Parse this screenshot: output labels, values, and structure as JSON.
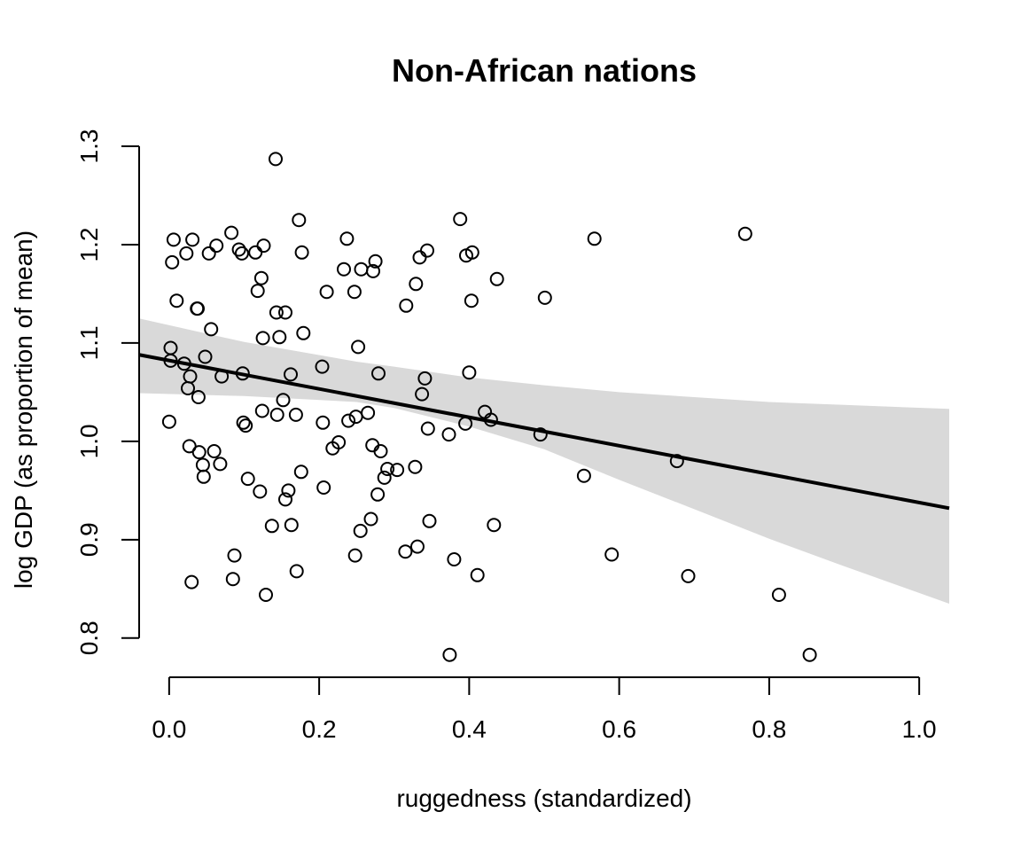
{
  "chart_data": {
    "type": "scatter",
    "title": "Non-African nations",
    "xlabel": "ruggedness (standardized)",
    "ylabel": "log GDP (as proportion of mean)",
    "xlim": [
      -0.04,
      1.04
    ],
    "ylim": [
      0.78,
      1.3
    ],
    "x_ticks": [
      0.0,
      0.2,
      0.4,
      0.6,
      0.8,
      1.0
    ],
    "x_tick_labels": [
      "0.0",
      "0.2",
      "0.4",
      "0.6",
      "0.8",
      "1.0"
    ],
    "y_ticks": [
      0.8,
      0.9,
      1.0,
      1.1,
      1.2,
      1.3
    ],
    "y_tick_labels": [
      "0.8",
      "0.9",
      "1.0",
      "1.1",
      "1.2",
      "1.3"
    ],
    "grid": false,
    "colors": {
      "points": "#000000",
      "line": "#000000",
      "band": "#d9d9d9"
    },
    "regression_line": {
      "x": [
        -0.04,
        1.04
      ],
      "y": [
        1.088,
        0.932
      ]
    },
    "confidence_band": {
      "x": [
        -0.04,
        0.1,
        0.25,
        0.3,
        0.4,
        0.5,
        0.6,
        0.7,
        0.8,
        0.9,
        1.04
      ],
      "upper": [
        1.125,
        1.101,
        1.081,
        1.076,
        1.065,
        1.057,
        1.05,
        1.045,
        1.04,
        1.037,
        1.033
      ],
      "lower": [
        1.049,
        1.046,
        1.04,
        1.034,
        1.015,
        0.992,
        0.961,
        0.931,
        0.901,
        0.873,
        0.835
      ]
    },
    "series": [
      {
        "points": [
          [
            0.0,
            1.02
          ],
          [
            0.002,
            1.095
          ],
          [
            0.002,
            1.082
          ],
          [
            0.004,
            1.182
          ],
          [
            0.006,
            1.205
          ],
          [
            0.01,
            1.143
          ],
          [
            0.02,
            1.079
          ],
          [
            0.023,
            1.191
          ],
          [
            0.025,
            1.054
          ],
          [
            0.027,
            0.995
          ],
          [
            0.028,
            1.066
          ],
          [
            0.03,
            0.857
          ],
          [
            0.031,
            1.205
          ],
          [
            0.037,
            1.135
          ],
          [
            0.038,
            1.135
          ],
          [
            0.039,
            1.045
          ],
          [
            0.04,
            0.989
          ],
          [
            0.045,
            0.976
          ],
          [
            0.046,
            0.964
          ],
          [
            0.048,
            1.086
          ],
          [
            0.053,
            1.191
          ],
          [
            0.056,
            1.114
          ],
          [
            0.06,
            0.99
          ],
          [
            0.063,
            1.199
          ],
          [
            0.068,
            0.977
          ],
          [
            0.07,
            1.066
          ],
          [
            0.083,
            1.212
          ],
          [
            0.085,
            0.86
          ],
          [
            0.087,
            0.884
          ],
          [
            0.093,
            1.195
          ],
          [
            0.097,
            1.191
          ],
          [
            0.098,
            1.069
          ],
          [
            0.099,
            1.019
          ],
          [
            0.102,
            1.016
          ],
          [
            0.105,
            0.962
          ],
          [
            0.115,
            1.192
          ],
          [
            0.118,
            1.153
          ],
          [
            0.121,
            0.949
          ],
          [
            0.123,
            1.166
          ],
          [
            0.124,
            1.031
          ],
          [
            0.125,
            1.105
          ],
          [
            0.126,
            1.199
          ],
          [
            0.129,
            0.844
          ],
          [
            0.137,
            0.914
          ],
          [
            0.142,
            1.287
          ],
          [
            0.143,
            1.131
          ],
          [
            0.144,
            1.027
          ],
          [
            0.147,
            1.106
          ],
          [
            0.152,
            1.042
          ],
          [
            0.155,
            1.131
          ],
          [
            0.155,
            0.941
          ],
          [
            0.159,
            0.95
          ],
          [
            0.162,
            1.068
          ],
          [
            0.163,
            0.915
          ],
          [
            0.169,
            1.027
          ],
          [
            0.17,
            0.868
          ],
          [
            0.173,
            1.225
          ],
          [
            0.176,
            0.969
          ],
          [
            0.177,
            1.192
          ],
          [
            0.179,
            1.11
          ],
          [
            0.204,
            1.076
          ],
          [
            0.205,
            1.019
          ],
          [
            0.206,
            0.953
          ],
          [
            0.21,
            1.152
          ],
          [
            0.218,
            0.993
          ],
          [
            0.226,
            0.999
          ],
          [
            0.233,
            1.175
          ],
          [
            0.237,
            1.206
          ],
          [
            0.239,
            1.021
          ],
          [
            0.247,
            1.152
          ],
          [
            0.248,
            0.884
          ],
          [
            0.249,
            1.025
          ],
          [
            0.252,
            1.096
          ],
          [
            0.255,
            0.909
          ],
          [
            0.256,
            1.175
          ],
          [
            0.265,
            1.029
          ],
          [
            0.269,
            0.921
          ],
          [
            0.271,
            0.996
          ],
          [
            0.272,
            1.173
          ],
          [
            0.275,
            1.183
          ],
          [
            0.278,
            0.946
          ],
          [
            0.279,
            1.069
          ],
          [
            0.282,
            0.99
          ],
          [
            0.287,
            0.963
          ],
          [
            0.291,
            0.972
          ],
          [
            0.304,
            0.971
          ],
          [
            0.315,
            0.888
          ],
          [
            0.316,
            1.138
          ],
          [
            0.328,
            0.974
          ],
          [
            0.329,
            1.16
          ],
          [
            0.331,
            0.893
          ],
          [
            0.334,
            1.187
          ],
          [
            0.337,
            1.048
          ],
          [
            0.341,
            1.064
          ],
          [
            0.344,
            1.194
          ],
          [
            0.345,
            1.013
          ],
          [
            0.347,
            0.919
          ],
          [
            0.373,
            1.007
          ],
          [
            0.374,
            0.783
          ],
          [
            0.38,
            0.88
          ],
          [
            0.388,
            1.226
          ],
          [
            0.395,
            1.018
          ],
          [
            0.396,
            1.189
          ],
          [
            0.4,
            1.07
          ],
          [
            0.403,
            1.143
          ],
          [
            0.404,
            1.192
          ],
          [
            0.411,
            0.864
          ],
          [
            0.421,
            1.03
          ],
          [
            0.429,
            1.022
          ],
          [
            0.433,
            0.915
          ],
          [
            0.437,
            1.165
          ],
          [
            0.495,
            1.007
          ],
          [
            0.501,
            1.146
          ],
          [
            0.553,
            0.965
          ],
          [
            0.567,
            1.206
          ],
          [
            0.59,
            0.885
          ],
          [
            0.677,
            0.98
          ],
          [
            0.692,
            0.863
          ],
          [
            0.768,
            1.211
          ],
          [
            0.813,
            0.844
          ],
          [
            0.854,
            0.783
          ]
        ]
      }
    ]
  }
}
